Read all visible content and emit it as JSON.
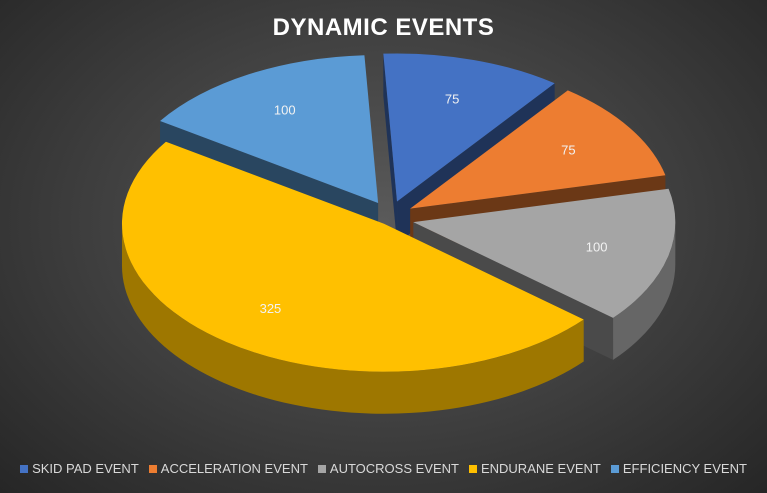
{
  "chart_data": {
    "type": "pie",
    "title": "DYNAMIC EVENTS",
    "categories": [
      "SKID PAD EVENT",
      "ACCELERATION EVENT",
      "AUTOCROSS EVENT",
      "ENDURANE EVENT",
      "EFFICIENCY EVENT"
    ],
    "values": [
      75,
      75,
      100,
      325,
      100
    ],
    "colors": [
      "#4472C4",
      "#ED7D31",
      "#A5A5A5",
      "#FFC000",
      "#5B9BD5"
    ],
    "data_labels": [
      "75",
      "75",
      "100",
      "325",
      "100"
    ],
    "style": "3d-exploded",
    "legend": "bottom"
  }
}
